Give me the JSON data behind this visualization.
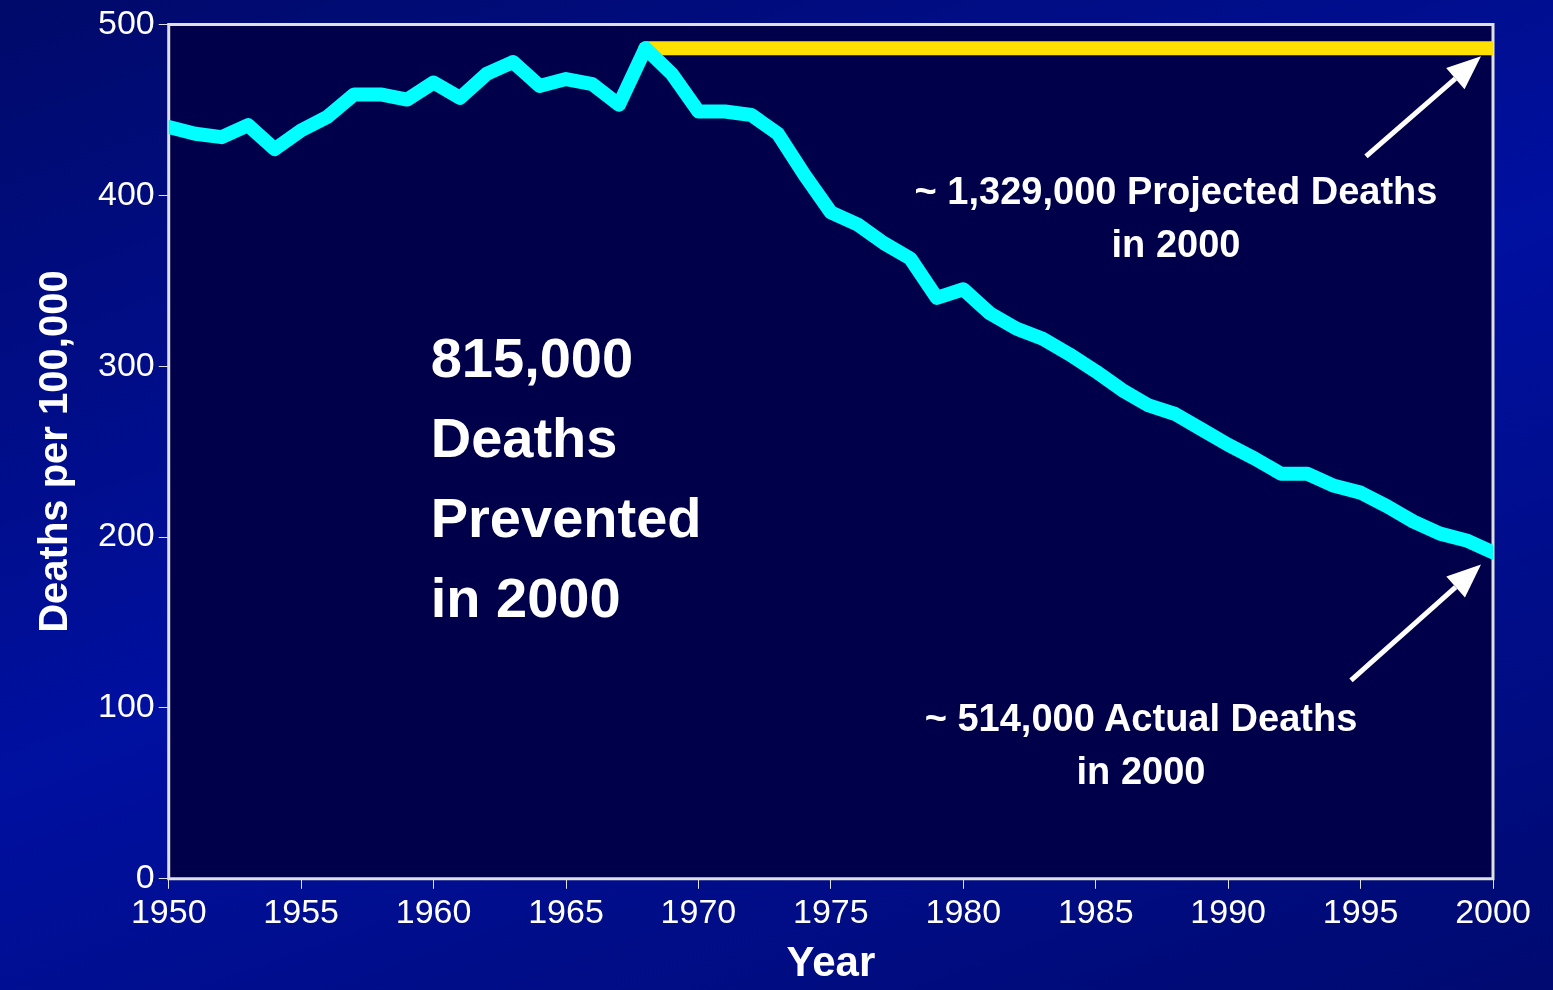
{
  "chart_data": {
    "type": "line",
    "xlabel": "Year",
    "ylabel": "Deaths per 100,000",
    "x": [
      1950,
      1951,
      1952,
      1953,
      1954,
      1955,
      1956,
      1957,
      1958,
      1959,
      1960,
      1961,
      1962,
      1963,
      1964,
      1965,
      1966,
      1967,
      1968,
      1969,
      1970,
      1971,
      1972,
      1973,
      1974,
      1975,
      1976,
      1977,
      1978,
      1979,
      1980,
      1981,
      1982,
      1983,
      1984,
      1985,
      1986,
      1987,
      1988,
      1989,
      1990,
      1991,
      1992,
      1993,
      1994,
      1995,
      1996,
      1997,
      1998,
      1999,
      2000
    ],
    "series": [
      {
        "color": "#00ffff",
        "values": [
          440,
          436,
          434,
          441,
          427,
          438,
          446,
          459,
          459,
          456,
          466,
          457,
          471,
          478,
          464,
          468,
          465,
          453,
          486,
          471,
          449,
          449,
          447,
          436,
          412,
          390,
          383,
          372,
          363,
          340,
          345,
          331,
          322,
          316,
          307,
          297,
          286,
          277,
          272,
          263,
          254,
          246,
          237,
          237,
          230,
          226,
          218,
          209,
          202,
          198,
          191
        ]
      },
      {
        "color": "#ffe000",
        "x": [
          1968,
          2000
        ],
        "values": [
          486,
          486
        ]
      }
    ],
    "xlim": [
      1950,
      2000
    ],
    "xticks": [
      1950,
      1955,
      1960,
      1965,
      1970,
      1975,
      1980,
      1985,
      1990,
      1995,
      2000
    ],
    "ylim": [
      0,
      500
    ],
    "yticks": [
      0,
      100,
      200,
      300,
      400,
      500
    ],
    "grid": false,
    "legend": false,
    "marker": "none",
    "line_style": "solid",
    "annotations": [
      "815,000\nDeaths\nPrevented\nin 2000",
      "~ 1,329,000 Projected Deaths\nin 2000",
      "~ 514,000 Actual Deaths\nin 2000"
    ]
  }
}
